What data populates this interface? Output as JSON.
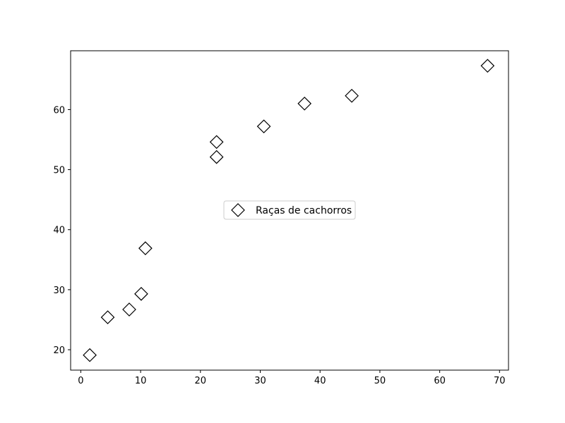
{
  "chart_data": {
    "type": "scatter",
    "title": "",
    "xlabel": "",
    "ylabel": "",
    "xlim": [
      -1.7,
      71.5
    ],
    "ylim": [
      16.6,
      69.8
    ],
    "xticks": [
      0,
      10,
      20,
      30,
      40,
      50,
      60,
      70
    ],
    "yticks": [
      20,
      30,
      40,
      50,
      60
    ],
    "grid": false,
    "legend_position": "center",
    "marker": "diamond",
    "marker_fill": "#ffffff",
    "marker_edge": "#000000",
    "series": [
      {
        "name": "Raças de cachorros",
        "points": [
          {
            "x": 1.5,
            "y": 19.1
          },
          {
            "x": 4.5,
            "y": 25.4
          },
          {
            "x": 8.1,
            "y": 26.7
          },
          {
            "x": 10.1,
            "y": 29.3
          },
          {
            "x": 10.8,
            "y": 36.9
          },
          {
            "x": 22.7,
            "y": 52.1
          },
          {
            "x": 22.7,
            "y": 54.6
          },
          {
            "x": 30.6,
            "y": 57.2
          },
          {
            "x": 37.4,
            "y": 61.0
          },
          {
            "x": 45.3,
            "y": 62.3
          },
          {
            "x": 68.0,
            "y": 67.3
          }
        ]
      }
    ]
  }
}
